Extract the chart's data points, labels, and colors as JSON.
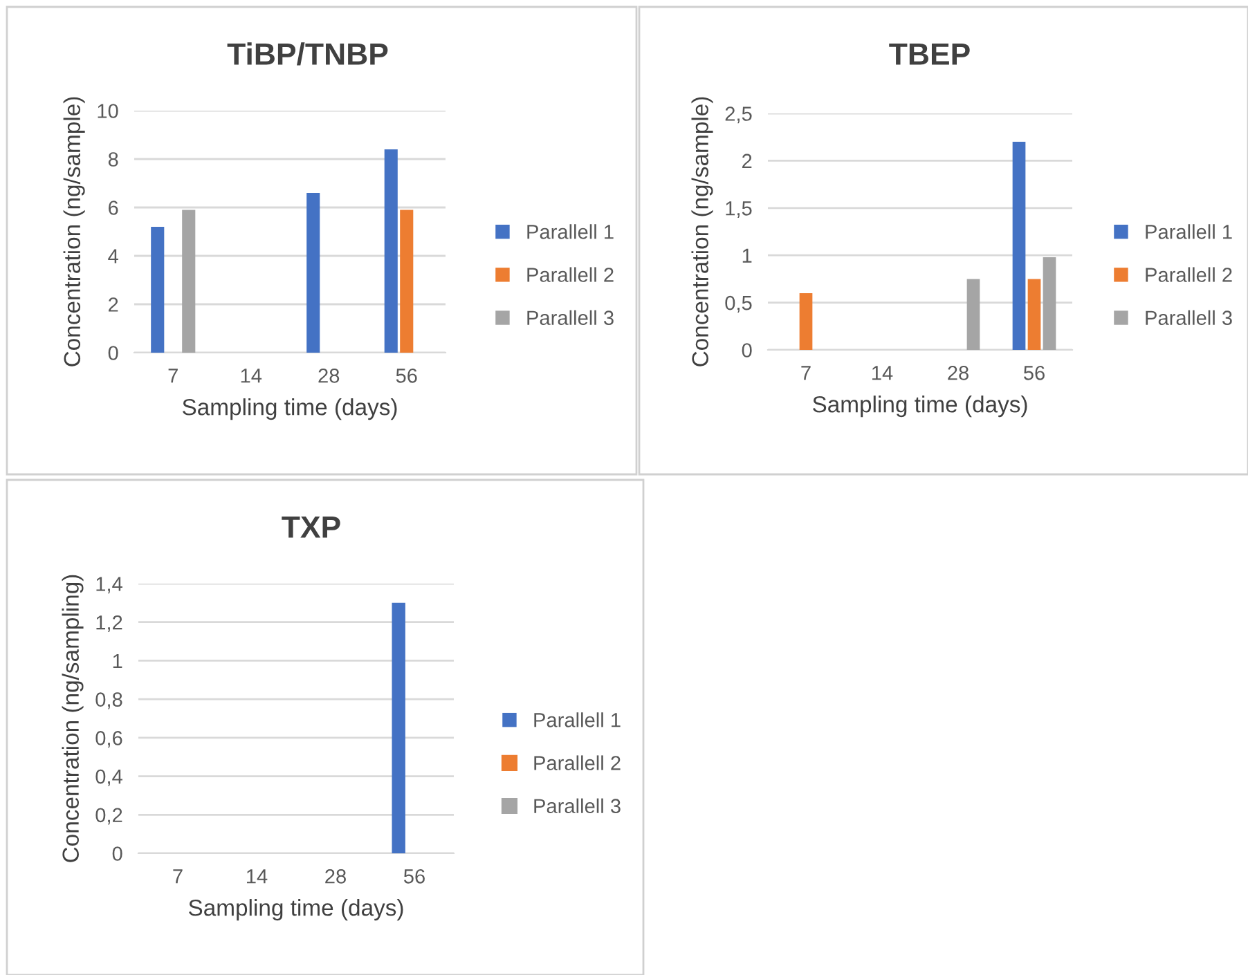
{
  "chart_data": [
    {
      "type": "bar",
      "title": "TiBP/TNBP",
      "xlabel": "Sampling time (days)",
      "ylabel": "Concentration (ng/sample)",
      "categories": [
        "7",
        "14",
        "28",
        "56"
      ],
      "series": [
        {
          "name": "Parallell 1",
          "color": "#4472c4",
          "values": [
            5.2,
            null,
            6.6,
            8.4
          ]
        },
        {
          "name": "Parallell 2",
          "color": "#ed7d31",
          "values": [
            null,
            null,
            null,
            5.9
          ]
        },
        {
          "name": "Parallell 3",
          "color": "#a5a5a5",
          "values": [
            5.9,
            null,
            null,
            null
          ]
        }
      ],
      "ylim": [
        0,
        10
      ],
      "yticks": [
        0,
        2,
        4,
        6,
        8,
        10
      ],
      "grid": "y",
      "legend": "right"
    },
    {
      "type": "bar",
      "title": "TBEP",
      "xlabel": "Sampling time (days)",
      "ylabel": "Concentration (ng/sample)",
      "categories": [
        "7",
        "14",
        "28",
        "56"
      ],
      "series": [
        {
          "name": "Parallell 1",
          "color": "#4472c4",
          "values": [
            null,
            null,
            null,
            2.2
          ]
        },
        {
          "name": "Parallell 2",
          "color": "#ed7d31",
          "values": [
            0.6,
            null,
            null,
            0.75
          ]
        },
        {
          "name": "Parallell 3",
          "color": "#a5a5a5",
          "values": [
            null,
            null,
            0.75,
            0.98
          ]
        }
      ],
      "ylim": [
        0,
        2.5
      ],
      "yticks": [
        0,
        {
          "value": 0.5,
          "label": "0,5"
        },
        1,
        {
          "value": 1.5,
          "label": "1,5"
        },
        2,
        {
          "value": 2.5,
          "label": "2,5"
        }
      ],
      "grid": "y",
      "legend": "right"
    },
    {
      "type": "bar",
      "title": "TXP",
      "xlabel": "Sampling time (days)",
      "ylabel": "Concentration (ng/sampling)",
      "categories": [
        "7",
        "14",
        "28",
        "56"
      ],
      "series": [
        {
          "name": "Parallell 1",
          "color": "#4472c4",
          "values": [
            null,
            null,
            null,
            1.3
          ]
        },
        {
          "name": "Parallell 2",
          "color": "#ed7d31",
          "values": [
            null,
            null,
            null,
            null
          ]
        },
        {
          "name": "Parallell 3",
          "color": "#a5a5a5",
          "values": [
            null,
            null,
            null,
            null
          ]
        }
      ],
      "ylim": [
        0,
        1.4
      ],
      "yticks": [
        0,
        {
          "value": 0.2,
          "label": "0,2"
        },
        {
          "value": 0.4,
          "label": "0,4"
        },
        {
          "value": 0.6,
          "label": "0,6"
        },
        {
          "value": 0.8,
          "label": "0,8"
        },
        1,
        {
          "value": 1.2,
          "label": "1,2"
        },
        {
          "value": 1.4,
          "label": "1,4"
        }
      ],
      "grid": "y",
      "legend": "right"
    }
  ]
}
